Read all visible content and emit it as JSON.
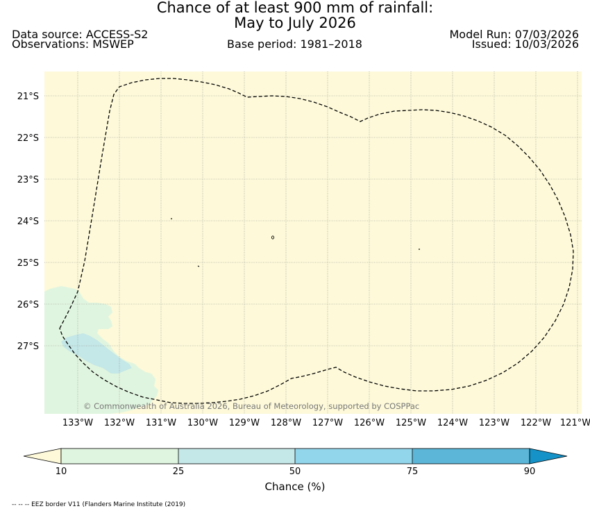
{
  "header": {
    "title_line1": "Chance of at least 900 mm of rainfall:",
    "title_line2": "May to July 2026",
    "data_source": "Data source: ACCESS-S2",
    "observations": "Observations: MSWEP",
    "base_period": "Base period: 1981–2018",
    "model_run": "Model Run: 07/03/2026",
    "issued": "Issued: 10/03/2026"
  },
  "map": {
    "lat_labels": [
      "21°S",
      "22°S",
      "23°S",
      "24°S",
      "25°S",
      "26°S",
      "27°S"
    ],
    "lon_labels": [
      "133°W",
      "132°W",
      "131°W",
      "130°W",
      "129°W",
      "128°W",
      "127°W",
      "126°W",
      "125°W",
      "124°W",
      "123°W",
      "122°W",
      "121°W"
    ],
    "copyright": "© Commonwealth of Australia 2026, Bureau of Meteorology, supported by COSPPac",
    "colors": {
      "ocean": "#fdf9d9",
      "grid": "#8a8a8a",
      "eez_border": "#000000"
    }
  },
  "colorbar": {
    "ticks": [
      "10",
      "25",
      "50",
      "75",
      "90"
    ],
    "label": "Chance (%)",
    "colors": [
      "#fdf9d9",
      "#e0f5df",
      "#c4e7e7",
      "#92d6eb",
      "#5cb6d8",
      "#1592c7"
    ]
  },
  "footnote": "-- -- -- EEZ border V11 (Flanders Marine Institute (2019)"
}
